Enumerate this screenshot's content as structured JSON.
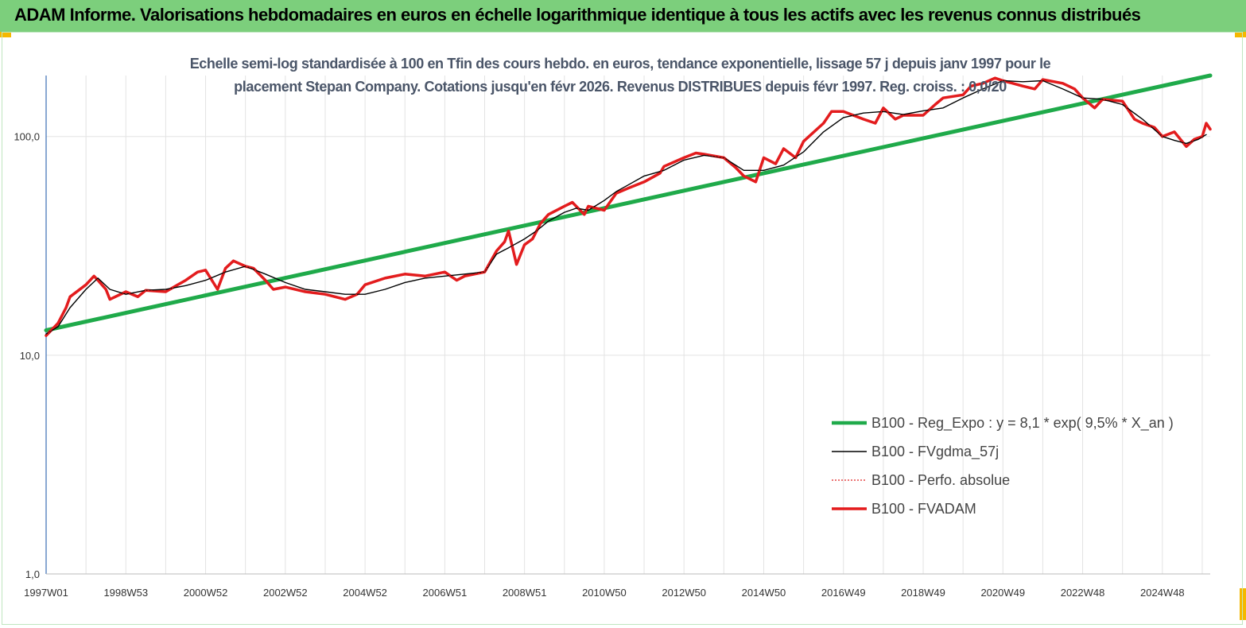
{
  "banner": {
    "title": "ADAM Informe. Valorisations hebdomadaires en euros en échelle logarithmique identique à tous les actifs avec les revenus connus distribués"
  },
  "chart_data": {
    "type": "line",
    "title": "Echelle semi-log standardisée à 100 en Tfin des cours hebdo. en euros, tendance exponentielle, lissage 57 j depuis janv 1997 pour le placement Stepan Company. Cotations jusqu'en févr 2026. Revenus DISTRIBUES depuis févr 1997. Reg. croiss. : 0,0/20",
    "title_lines": [
      "Echelle semi-log standardisée à 100 en Tfin des cours hebdo. en euros, tendance exponentielle, lissage 57 j depuis janv 1997 pour le",
      "placement Stepan Company. Cotations jusqu'en févr 2026. Revenus DISTRIBUES depuis févr 1997. Reg. croiss. : 0,0/20"
    ],
    "y_scale": "log",
    "ylim": [
      1,
      190
    ],
    "xlim": [
      1997.0,
      2026.2
    ],
    "y_ticks": [
      {
        "value": 1,
        "label": "1,0"
      },
      {
        "value": 10,
        "label": "10,0"
      },
      {
        "value": 100,
        "label": "100,0"
      }
    ],
    "x_ticks": [
      {
        "value": 1997.0,
        "label": "1997W01"
      },
      {
        "value": 1999.0,
        "label": "1998W53"
      },
      {
        "value": 2001.0,
        "label": "2000W52"
      },
      {
        "value": 2003.0,
        "label": "2002W52"
      },
      {
        "value": 2005.0,
        "label": "2004W52"
      },
      {
        "value": 2007.0,
        "label": "2006W51"
      },
      {
        "value": 2009.0,
        "label": "2008W51"
      },
      {
        "value": 2011.0,
        "label": "2010W50"
      },
      {
        "value": 2013.0,
        "label": "2012W50"
      },
      {
        "value": 2015.0,
        "label": "2014W50"
      },
      {
        "value": 2017.0,
        "label": "2016W49"
      },
      {
        "value": 2019.0,
        "label": "2018W49"
      },
      {
        "value": 2021.0,
        "label": "2020W49"
      },
      {
        "value": 2023.0,
        "label": "2022W48"
      },
      {
        "value": 2025.0,
        "label": "2024W48"
      }
    ],
    "grid": "vertical",
    "legend_position": "bottom-right",
    "series": [
      {
        "name": "B100 - Reg_Expo : y = 8,1 * exp( 9,5% *  X_an )",
        "color": "#1faa4a",
        "style": "solid-thick",
        "x": [
          1997.0,
          2026.2
        ],
        "y": [
          13.0,
          190.0
        ]
      },
      {
        "name": "B100 - FVgdma_57j",
        "color": "#000000",
        "style": "solid-thin",
        "x": [
          1997.0,
          1997.3,
          1997.6,
          1998.0,
          1998.3,
          1998.6,
          1999.0,
          1999.5,
          2000.0,
          2000.5,
          2001.0,
          2001.5,
          2002.0,
          2002.5,
          2003.0,
          2003.5,
          2004.0,
          2004.5,
          2005.0,
          2005.5,
          2006.0,
          2006.5,
          2007.0,
          2007.5,
          2008.0,
          2008.3,
          2008.6,
          2009.0,
          2009.3,
          2009.6,
          2010.0,
          2010.3,
          2010.6,
          2011.0,
          2011.3,
          2011.6,
          2012.0,
          2012.5,
          2013.0,
          2013.5,
          2014.0,
          2014.5,
          2015.0,
          2015.5,
          2016.0,
          2016.5,
          2017.0,
          2017.5,
          2018.0,
          2018.5,
          2019.0,
          2019.5,
          2020.0,
          2020.5,
          2021.0,
          2021.5,
          2022.0,
          2022.5,
          2023.0,
          2023.5,
          2024.0,
          2024.5,
          2025.0,
          2025.3,
          2025.6,
          2025.9,
          2026.1
        ],
        "y": [
          12.5,
          13.5,
          16.5,
          20.0,
          22.5,
          20.0,
          19.0,
          19.8,
          20.0,
          20.8,
          22.0,
          24.0,
          25.5,
          23.5,
          21.5,
          20.0,
          19.5,
          19.0,
          19.0,
          20.0,
          21.5,
          22.5,
          23.0,
          23.5,
          24.0,
          29.0,
          31.0,
          34.0,
          37.0,
          41.0,
          45.0,
          47.0,
          46.0,
          51.0,
          56.0,
          60.0,
          66.0,
          70.0,
          78.0,
          82.0,
          80.0,
          70.0,
          70.0,
          74.0,
          85.0,
          105.0,
          122.0,
          128.0,
          130.0,
          126.0,
          131.0,
          135.0,
          150.0,
          165.0,
          180.0,
          178.0,
          180.0,
          165.0,
          150.0,
          148.0,
          140.0,
          120.0,
          100.0,
          96.0,
          93.0,
          97.0,
          102.0
        ]
      },
      {
        "name": "B100 - Perfo. absolue",
        "color": "#e02020",
        "style": "dotted",
        "x": [
          1997.0,
          1997.3,
          1997.5,
          1997.6,
          1998.0,
          1998.2,
          1998.3,
          1998.5,
          1998.6,
          1999.0,
          1999.3,
          1999.5,
          2000.0,
          2000.3,
          2000.5,
          2000.8,
          2001.0,
          2001.3,
          2001.5,
          2001.7,
          2002.0,
          2002.2,
          2002.5,
          2002.7,
          2003.0,
          2003.5,
          2004.0,
          2004.5,
          2004.8,
          2005.0,
          2005.5,
          2006.0,
          2006.5,
          2007.0,
          2007.3,
          2007.5,
          2008.0,
          2008.3,
          2008.5,
          2008.6,
          2008.8,
          2009.0,
          2009.2,
          2009.4,
          2009.6,
          2010.0,
          2010.2,
          2010.5,
          2010.6,
          2011.0,
          2011.3,
          2011.6,
          2012.0,
          2012.4,
          2012.5,
          2013.0,
          2013.3,
          2013.5,
          2014.0,
          2014.3,
          2014.5,
          2014.8,
          2015.0,
          2015.3,
          2015.5,
          2015.8,
          2016.0,
          2016.5,
          2016.7,
          2017.0,
          2017.5,
          2017.8,
          2018.0,
          2018.3,
          2018.5,
          2019.0,
          2019.3,
          2019.5,
          2020.0,
          2020.2,
          2020.5,
          2020.8,
          2021.0,
          2021.5,
          2021.8,
          2022.0,
          2022.5,
          2022.8,
          2023.0,
          2023.3,
          2023.5,
          2024.0,
          2024.3,
          2024.5,
          2024.8,
          2025.0,
          2025.3,
          2025.6,
          2025.8,
          2026.0,
          2026.1,
          2026.2
        ],
        "y": [
          12.3,
          14.0,
          16.5,
          18.5,
          21.0,
          23.0,
          22.0,
          20.0,
          18.0,
          19.5,
          18.5,
          19.8,
          19.5,
          21.0,
          22.0,
          24.0,
          24.5,
          20.0,
          25.0,
          27.0,
          25.5,
          25.0,
          22.0,
          20.0,
          20.5,
          19.5,
          19.0,
          18.0,
          19.0,
          21.0,
          22.5,
          23.5,
          23.0,
          24.0,
          22.0,
          23.0,
          24.0,
          30.0,
          33.0,
          37.0,
          26.0,
          32.0,
          34.0,
          40.0,
          44.0,
          48.0,
          50.0,
          44.0,
          48.0,
          46.0,
          55.0,
          58.0,
          62.0,
          68.0,
          73.0,
          80.0,
          84.0,
          83.0,
          80.0,
          72.0,
          66.0,
          62.0,
          80.0,
          75.0,
          88.0,
          80.0,
          95.0,
          115.0,
          130.0,
          130.0,
          120.0,
          115.0,
          135.0,
          120.0,
          125.0,
          125.0,
          140.0,
          150.0,
          155.0,
          170.0,
          175.0,
          185.0,
          180.0,
          170.0,
          165.0,
          182.0,
          175.0,
          165.0,
          150.0,
          135.0,
          148.0,
          145.0,
          120.0,
          115.0,
          110.0,
          100.0,
          105.0,
          90.0,
          97.0,
          100.0,
          115.0,
          108.0
        ]
      },
      {
        "name": "B100 - FVADAM",
        "color": "#e41a1c",
        "style": "solid-thick",
        "x": [
          1997.0,
          1997.3,
          1997.5,
          1997.6,
          1998.0,
          1998.2,
          1998.3,
          1998.5,
          1998.6,
          1999.0,
          1999.3,
          1999.5,
          2000.0,
          2000.3,
          2000.5,
          2000.8,
          2001.0,
          2001.3,
          2001.5,
          2001.7,
          2002.0,
          2002.2,
          2002.5,
          2002.7,
          2003.0,
          2003.5,
          2004.0,
          2004.5,
          2004.8,
          2005.0,
          2005.5,
          2006.0,
          2006.5,
          2007.0,
          2007.3,
          2007.5,
          2008.0,
          2008.3,
          2008.5,
          2008.6,
          2008.8,
          2009.0,
          2009.2,
          2009.4,
          2009.6,
          2010.0,
          2010.2,
          2010.5,
          2010.6,
          2011.0,
          2011.3,
          2011.6,
          2012.0,
          2012.4,
          2012.5,
          2013.0,
          2013.3,
          2013.5,
          2014.0,
          2014.3,
          2014.5,
          2014.8,
          2015.0,
          2015.3,
          2015.5,
          2015.8,
          2016.0,
          2016.5,
          2016.7,
          2017.0,
          2017.5,
          2017.8,
          2018.0,
          2018.3,
          2018.5,
          2019.0,
          2019.3,
          2019.5,
          2020.0,
          2020.2,
          2020.5,
          2020.8,
          2021.0,
          2021.5,
          2021.8,
          2022.0,
          2022.5,
          2022.8,
          2023.0,
          2023.3,
          2023.5,
          2024.0,
          2024.3,
          2024.5,
          2024.8,
          2025.0,
          2025.3,
          2025.6,
          2025.8,
          2026.0,
          2026.1,
          2026.2
        ],
        "y": [
          12.3,
          14.0,
          16.5,
          18.5,
          21.0,
          23.0,
          22.0,
          20.0,
          18.0,
          19.5,
          18.5,
          19.8,
          19.5,
          21.0,
          22.0,
          24.0,
          24.5,
          20.0,
          25.0,
          27.0,
          25.5,
          25.0,
          22.0,
          20.0,
          20.5,
          19.5,
          19.0,
          18.0,
          19.0,
          21.0,
          22.5,
          23.5,
          23.0,
          24.0,
          22.0,
          23.0,
          24.0,
          30.0,
          33.0,
          37.0,
          26.0,
          32.0,
          34.0,
          40.0,
          44.0,
          48.0,
          50.0,
          44.0,
          48.0,
          46.0,
          55.0,
          58.0,
          62.0,
          68.0,
          73.0,
          80.0,
          84.0,
          83.0,
          80.0,
          72.0,
          66.0,
          62.0,
          80.0,
          75.0,
          88.0,
          80.0,
          95.0,
          115.0,
          130.0,
          130.0,
          120.0,
          115.0,
          135.0,
          120.0,
          125.0,
          125.0,
          140.0,
          150.0,
          155.0,
          170.0,
          175.0,
          185.0,
          180.0,
          170.0,
          165.0,
          182.0,
          175.0,
          165.0,
          150.0,
          135.0,
          148.0,
          145.0,
          120.0,
          115.0,
          110.0,
          100.0,
          105.0,
          90.0,
          97.0,
          100.0,
          115.0,
          108.0
        ]
      }
    ]
  }
}
